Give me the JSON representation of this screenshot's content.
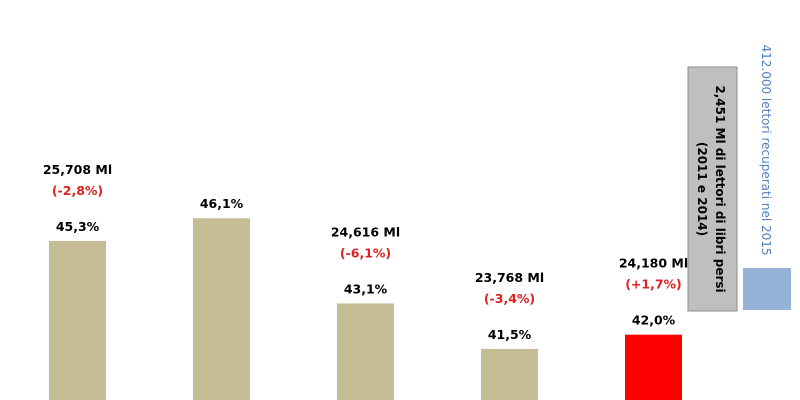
{
  "chart_data": {
    "type": "bar",
    "title": "",
    "xlabel": "",
    "ylabel": "",
    "bars": [
      {
        "value": 45.3,
        "pct_label": "45,3%",
        "readers_label": "25,708 Ml",
        "change_label": "(-2,8%)",
        "color": "#C6BD97"
      },
      {
        "value": 46.1,
        "pct_label": "46,1%",
        "readers_label": "",
        "change_label": "",
        "color": "#C6BD97"
      },
      {
        "value": 43.1,
        "pct_label": "43,1%",
        "readers_label": "24,616 Ml",
        "change_label": "(-6,1%)",
        "color": "#C6BD97"
      },
      {
        "value": 41.5,
        "pct_label": "41,5%",
        "readers_label": "23,768 Ml",
        "change_label": "(-3,4%)",
        "color": "#C6BD97"
      },
      {
        "value": 42.0,
        "pct_label": "42,0%",
        "readers_label": "24,180 Ml",
        "change_label": "(+1,7%)",
        "color": "#FF0000"
      }
    ],
    "annotations": [
      {
        "lines": [
          "2,451 Ml di lettori di libri persi",
          "(2011 e 2014)"
        ],
        "color": "#BFBFBF",
        "text_color": "#000000",
        "orientation": "vertical"
      },
      {
        "lines": [
          "412.000 lettori recuperati nel 2015"
        ],
        "color": "#95B3D7",
        "text_color": "#4F81BD",
        "orientation": "vertical"
      }
    ],
    "colors": {
      "bar": "#C6BD97",
      "highlight": "#FF0000",
      "change_text": "#E02020",
      "label_text": "#000000"
    }
  }
}
